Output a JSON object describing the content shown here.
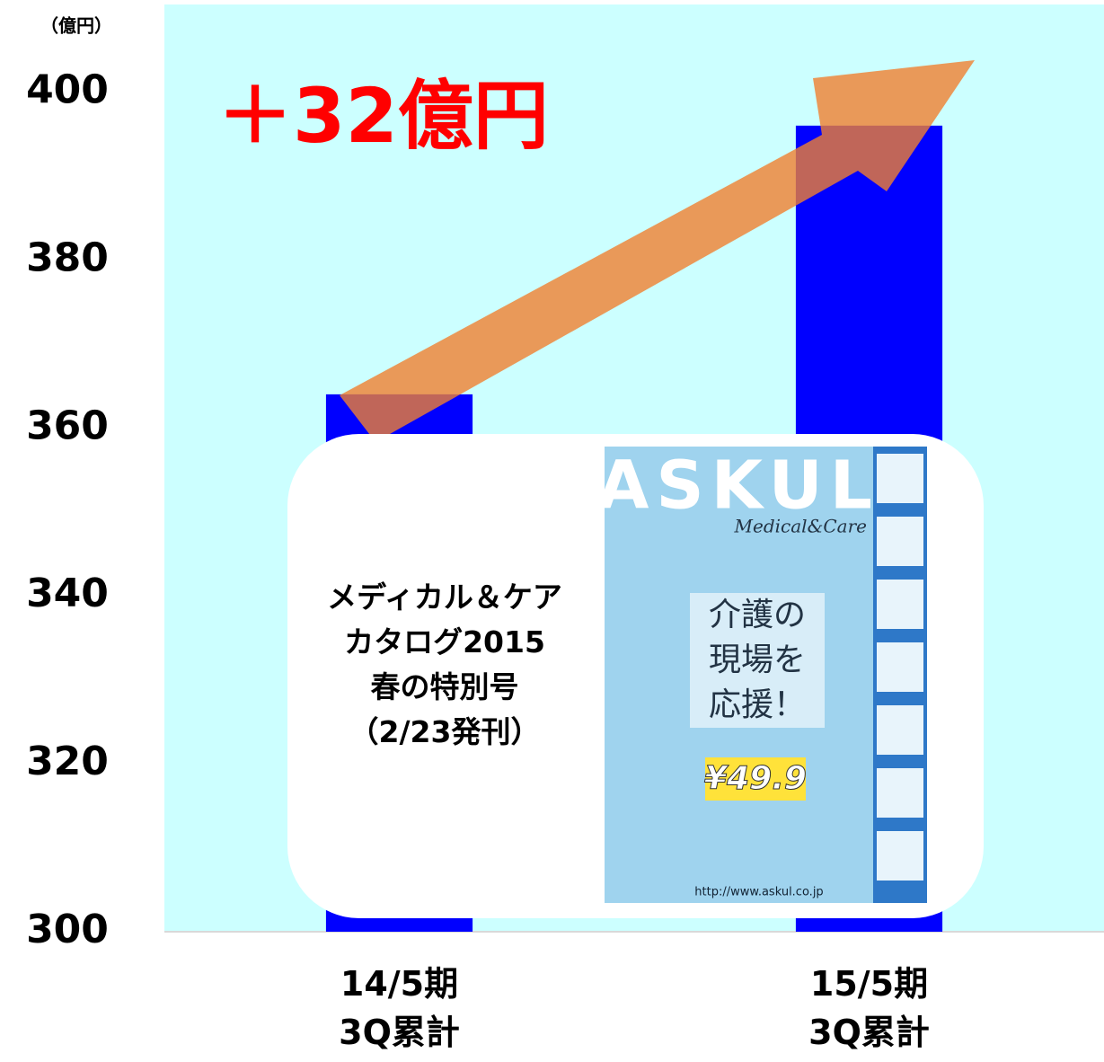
{
  "chart_data": {
    "type": "bar",
    "unit_label": "（億円）",
    "annotation": "＋32億円",
    "categories": [
      "14/5期\n3Q累計",
      "15/5期\n3Q累計"
    ],
    "values": [
      364,
      396
    ],
    "color": "#0000ff",
    "background": "#ccffff",
    "ylim": [
      300,
      410
    ],
    "yticks": [
      300,
      320,
      340,
      360,
      380,
      400
    ],
    "callout": {
      "text": "メディカル＆ケア\nカタログ2015\n春の特別号\n（2/23発刊）",
      "catalog": {
        "brand": "ASKUL",
        "subtitle": "Medical&Care",
        "headline": "介護の\n現場を\n応援！",
        "price": "¥49.9",
        "url": "http://www.askul.co.jp"
      }
    }
  }
}
